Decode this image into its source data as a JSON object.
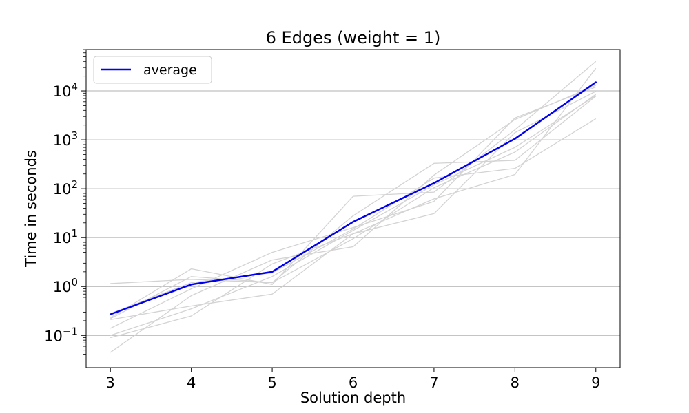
{
  "chart_data": {
    "type": "line",
    "title": "6 Edges (weight = 1)",
    "xlabel": "Solution depth",
    "ylabel": "Time in seconds",
    "x": [
      3,
      4,
      5,
      6,
      7,
      8,
      9
    ],
    "xlim": [
      2.7,
      9.3
    ],
    "ylim": [
      0.022,
      70000
    ],
    "yscale": "log",
    "y_ticks": [
      {
        "value": 0.1,
        "base": "10",
        "exp": "−1"
      },
      {
        "value": 1,
        "base": "10",
        "exp": "0"
      },
      {
        "value": 10,
        "base": "10",
        "exp": "1"
      },
      {
        "value": 100,
        "base": "10",
        "exp": "2"
      },
      {
        "value": 1000,
        "base": "10",
        "exp": "3"
      },
      {
        "value": 10000,
        "base": "10",
        "exp": "4"
      }
    ],
    "x_ticks": [
      "3",
      "4",
      "5",
      "6",
      "7",
      "8",
      "9"
    ],
    "grid": "y-major",
    "legend": {
      "placement": "top-left",
      "entries": [
        "average"
      ]
    },
    "colors": {
      "average": "#0000ee",
      "runs": "#d3d3d3",
      "grid": "#b0b0b0"
    },
    "series": [
      {
        "name": "average",
        "values": [
          0.27,
          1.1,
          2.0,
          21,
          130,
          1050,
          15000
        ]
      },
      {
        "values": [
          1.15,
          1.4,
          1.2,
          9.5,
          105,
          560,
          8500
        ]
      },
      {
        "values": [
          0.23,
          2.3,
          1.1,
          70,
          85,
          1600,
          40000
        ]
      },
      {
        "values": [
          0.14,
          0.9,
          5.0,
          16,
          55,
          2800,
          12000
        ]
      },
      {
        "values": [
          0.22,
          1.6,
          1.2,
          28,
          330,
          380,
          7800
        ]
      },
      {
        "values": [
          0.09,
          0.25,
          2.9,
          12,
          62,
          195,
          29000
        ]
      },
      {
        "values": [
          0.045,
          0.65,
          3.5,
          6.5,
          190,
          2600,
          13000
        ]
      },
      {
        "values": [
          0.21,
          0.4,
          0.7,
          12,
          31,
          1400,
          9800
        ]
      },
      {
        "values": [
          0.28,
          1.2,
          1.9,
          15,
          165,
          260,
          2700
        ]
      },
      {
        "values": [
          0.1,
          0.35,
          1.6,
          14,
          120,
          700,
          8000
        ]
      }
    ]
  }
}
